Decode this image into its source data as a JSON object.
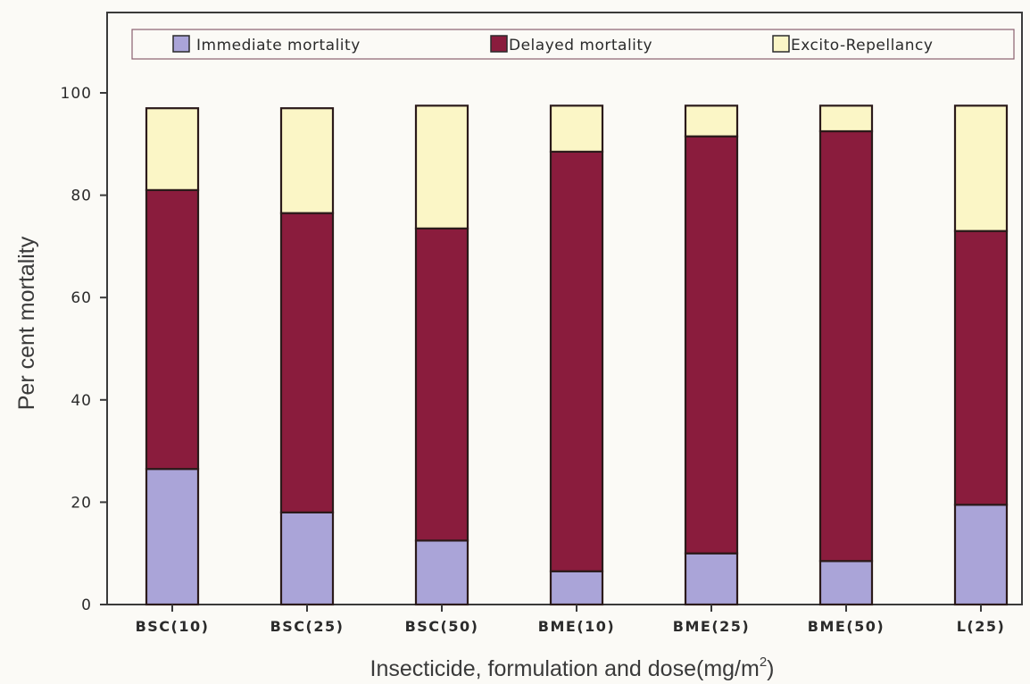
{
  "chart_data": {
    "type": "bar",
    "stacked": true,
    "categories": [
      "BSC(10)",
      "BSC(25)",
      "BSC(50)",
      "BME(10)",
      "BME(25)",
      "BME(50)",
      "L(25)"
    ],
    "series": [
      {
        "name": "Immediate mortality",
        "color": "#aaa4d8",
        "values": [
          26.5,
          18,
          12.5,
          6.5,
          10,
          8.5,
          19.5
        ]
      },
      {
        "name": "Delayed mortality",
        "color": "#8a1c3d",
        "values": [
          54.5,
          58.5,
          61,
          82,
          81.5,
          84,
          53.5
        ]
      },
      {
        "name": "Excito-Repellancy",
        "color": "#fbf6c6",
        "values": [
          16,
          20.5,
          24,
          9,
          6,
          5,
          24.5
        ]
      }
    ],
    "ylim": [
      0,
      100
    ],
    "yticks": [
      0,
      20,
      40,
      60,
      80,
      100
    ],
    "ylabel": "Per cent mortality",
    "xlabel_main": "Insecticide, formulation and dose(mg/m",
    "xlabel_sup": "2",
    "xlabel_end": ")",
    "legend_position": "top"
  }
}
